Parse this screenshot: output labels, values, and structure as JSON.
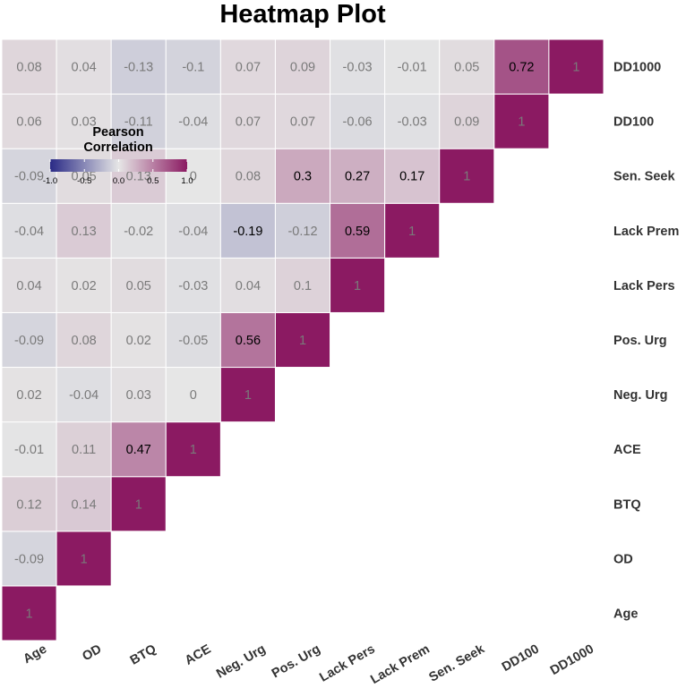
{
  "chart_data": {
    "type": "heatmap",
    "title": "Heatmap Plot",
    "variables": [
      "Age",
      "OD",
      "BTQ",
      "ACE",
      "Neg. Urg",
      "Pos. Urg",
      "Lack Pers",
      "Lack Prem",
      "Sen. Seek",
      "DD100",
      "DD1000"
    ],
    "lower_triangle": [
      [
        1
      ],
      [
        -0.09,
        1
      ],
      [
        0.12,
        0.14,
        1
      ],
      [
        -0.01,
        0.11,
        0.47,
        1
      ],
      [
        0.02,
        -0.04,
        0.03,
        0,
        1
      ],
      [
        -0.09,
        0.08,
        0.02,
        -0.05,
        0.56,
        1
      ],
      [
        0.04,
        0.02,
        0.05,
        -0.03,
        0.04,
        0.1,
        1
      ],
      [
        -0.04,
        0.13,
        -0.02,
        -0.04,
        -0.19,
        -0.12,
        0.59,
        1
      ],
      [
        -0.09,
        0.05,
        0.13,
        0,
        0.08,
        0.3,
        0.27,
        0.17,
        1
      ],
      [
        0.06,
        0.03,
        -0.11,
        -0.04,
        0.07,
        0.07,
        -0.06,
        -0.03,
        0.09,
        1
      ],
      [
        0.08,
        0.04,
        -0.13,
        -0.1,
        0.07,
        0.09,
        -0.03,
        -0.01,
        0.05,
        0.72,
        1
      ]
    ],
    "value_labels": [
      [
        "1"
      ],
      [
        "-0.09",
        "1"
      ],
      [
        "0.12",
        "0.14",
        "1"
      ],
      [
        "-0.01",
        "0.11",
        "0.47",
        "1"
      ],
      [
        "0.02",
        "-0.04",
        "0.03",
        "0",
        "1"
      ],
      [
        "-0.09",
        "0.08",
        "0.02",
        "-0.05",
        "0.56",
        "1"
      ],
      [
        "0.04",
        "0.02",
        "0.05",
        "-0.03",
        "0.04",
        "0.1",
        "1"
      ],
      [
        "-0.04",
        "0.13",
        "-0.02",
        "-0.04",
        "-0.19",
        "-0.12",
        "0.59",
        "1"
      ],
      [
        "-0.09",
        "0.05",
        "0.13",
        "0",
        "0.08",
        "0.3",
        "0.27",
        "0.17",
        "1"
      ],
      [
        "0.06",
        "0.03",
        "-0.11",
        "-0.04",
        "0.07",
        "0.07",
        "-0.06",
        "-0.03",
        "0.09",
        "1"
      ],
      [
        "0.08",
        "0.04",
        "-0.13",
        "-0.1",
        "0.07",
        "0.09",
        "-0.03",
        "-0.01",
        "0.05",
        "0.72",
        "1"
      ]
    ],
    "color_scale": {
      "low": "#2a2a86",
      "mid": "#e6e6e6",
      "high": "#8b1a62",
      "limits": [
        -1,
        1
      ],
      "emphasis_threshold": 0.15,
      "emphasis_text_color": "#000000",
      "muted_text_color": "#7a7a7a"
    },
    "legend": {
      "title_lines": [
        "Pearson",
        "Correlation"
      ],
      "ticks": [
        "-1.0",
        "-0.5",
        "0.0",
        "0.5",
        "1.0"
      ],
      "tick_values": [
        -1,
        -0.5,
        0,
        0.5,
        1
      ],
      "placement": "top-left"
    }
  }
}
